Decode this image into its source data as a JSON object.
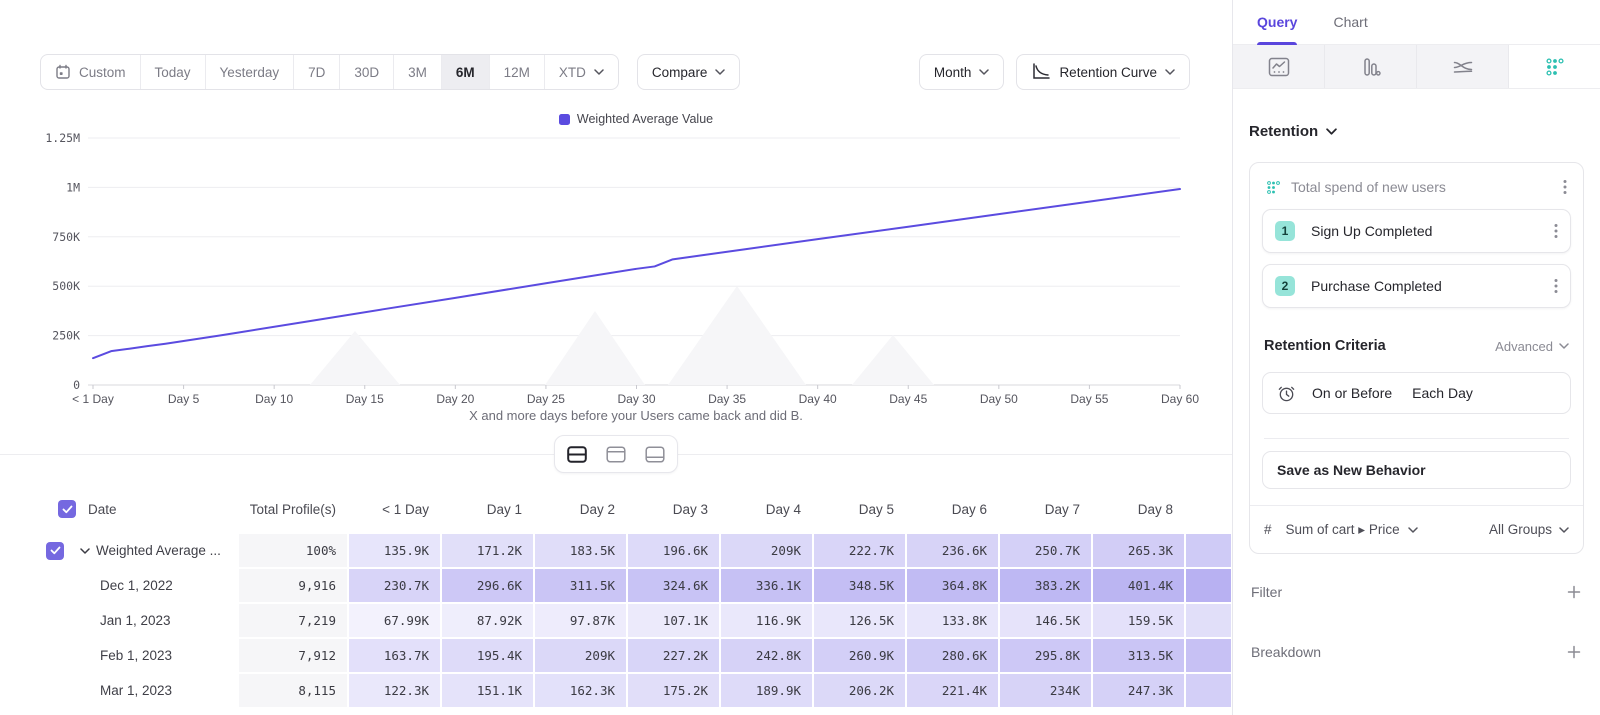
{
  "colors": {
    "accent": "#5b4be0",
    "heat_rgb": "101,86,226",
    "teal": "#2cc0b1",
    "teal_badge": "#96e4d9"
  },
  "toolbar": {
    "ranges": [
      "Custom",
      "Today",
      "Yesterday",
      "7D",
      "30D",
      "3M",
      "6M",
      "12M",
      "XTD"
    ],
    "active_range": "6M",
    "compare_label": "Compare",
    "granularity_label": "Month",
    "chart_type_label": "Retention Curve"
  },
  "chart_data": {
    "type": "line",
    "series": [
      {
        "name": "Weighted Average Value",
        "points": [
          [
            0,
            135900
          ],
          [
            1,
            171200
          ],
          [
            2,
            183500
          ],
          [
            3,
            196600
          ],
          [
            4,
            209000
          ],
          [
            5,
            222700
          ],
          [
            6,
            236600
          ],
          [
            7,
            250700
          ],
          [
            8,
            265300
          ],
          [
            12,
            324000
          ],
          [
            16,
            383000
          ],
          [
            20,
            441000
          ],
          [
            25,
            515000
          ],
          [
            30,
            588000
          ],
          [
            31,
            600000
          ],
          [
            32,
            636000
          ],
          [
            36,
            687000
          ],
          [
            40,
            738000
          ],
          [
            45,
            801000
          ],
          [
            50,
            865000
          ],
          [
            55,
            928000
          ],
          [
            60,
            992000
          ]
        ]
      }
    ],
    "xlabel": "X and more days before your Users came back and did B.",
    "ylabel": "",
    "ylim": [
      0,
      1250000
    ],
    "grid": "horizontal",
    "legend_position": "top-center",
    "y_ticks": [
      {
        "label": "1.25M",
        "value": 1250000
      },
      {
        "label": "1M",
        "value": 1000000
      },
      {
        "label": "750K",
        "value": 750000
      },
      {
        "label": "500K",
        "value": 500000
      },
      {
        "label": "250K",
        "value": 250000
      },
      {
        "label": "0",
        "value": 0
      }
    ],
    "x_ticks": [
      {
        "label": "< 1 Day",
        "day": 0
      },
      {
        "label": "Day 5",
        "day": 5
      },
      {
        "label": "Day 10",
        "day": 10
      },
      {
        "label": "Day 15",
        "day": 15
      },
      {
        "label": "Day 20",
        "day": 20
      },
      {
        "label": "Day 25",
        "day": 25
      },
      {
        "label": "Day 30",
        "day": 30
      },
      {
        "label": "Day 35",
        "day": 35
      },
      {
        "label": "Day 40",
        "day": 40
      },
      {
        "label": "Day 45",
        "day": 45
      },
      {
        "label": "Day 50",
        "day": 50
      },
      {
        "label": "Day 55",
        "day": 55
      },
      {
        "label": "Day 60",
        "day": 60
      }
    ]
  },
  "table": {
    "headers": [
      "Date",
      "Total Profile(s)",
      "< 1 Day",
      "Day 1",
      "Day 2",
      "Day 3",
      "Day 4",
      "Day 5",
      "Day 6",
      "Day 7",
      "Day 8"
    ],
    "rows": [
      {
        "label": "Weighted Average ...",
        "expandable": true,
        "checked": true,
        "total": "100%",
        "values": [
          "135.9K",
          "171.2K",
          "183.5K",
          "196.6K",
          "209K",
          "222.7K",
          "236.6K",
          "250.7K",
          "265.3K"
        ],
        "edge": 280
      },
      {
        "label": "Dec 1, 2022",
        "total": "9,916",
        "values": [
          "230.7K",
          "296.6K",
          "311.5K",
          "324.6K",
          "336.1K",
          "348.5K",
          "364.8K",
          "383.2K",
          "401.4K"
        ],
        "edge": 420
      },
      {
        "label": "Jan 1, 2023",
        "total": "7,219",
        "values": [
          "67.99K",
          "87.92K",
          "97.87K",
          "107.1K",
          "116.9K",
          "126.5K",
          "133.8K",
          "146.5K",
          "159.5K"
        ],
        "edge": 172
      },
      {
        "label": "Feb 1, 2023",
        "total": "7,912",
        "values": [
          "163.7K",
          "195.4K",
          "209K",
          "227.2K",
          "242.8K",
          "260.9K",
          "280.6K",
          "295.8K",
          "313.5K"
        ],
        "edge": 331
      },
      {
        "label": "Mar 1, 2023",
        "total": "8,115",
        "values": [
          "122.3K",
          "151.1K",
          "162.3K",
          "175.2K",
          "189.9K",
          "206.2K",
          "221.4K",
          "234K",
          "247.3K"
        ],
        "edge": 261
      }
    ]
  },
  "panel": {
    "tabs": [
      "Query",
      "Chart"
    ],
    "active_tab": "Query",
    "section_label": "Retention",
    "behavior": {
      "title": "Total spend of new users",
      "steps": [
        {
          "num": "1",
          "label": "Sign Up Completed"
        },
        {
          "num": "2",
          "label": "Purchase Completed"
        }
      ]
    },
    "criteria": {
      "label": "Retention Criteria",
      "mode": "Advanced",
      "timing": "On or Before",
      "window": "Each Day"
    },
    "save_label": "Save as New Behavior",
    "measure": {
      "symbol": "#",
      "label": "Sum of cart ▸ Price",
      "groups": "All Groups"
    },
    "filter_label": "Filter",
    "breakdown_label": "Breakdown"
  }
}
